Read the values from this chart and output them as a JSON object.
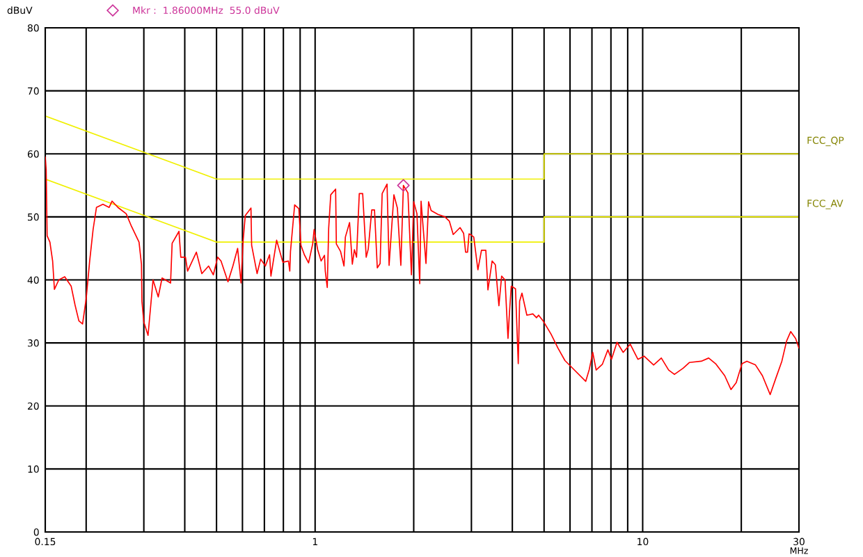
{
  "chart_data": {
    "type": "line",
    "ylabel": "dBuV",
    "xlabel": "MHz",
    "log": "x",
    "grid": true,
    "legend": false,
    "marker": "none",
    "line_style": "solid",
    "xlim": [
      0.15,
      30
    ],
    "ylim": [
      0,
      80
    ],
    "xticks": [
      0.15,
      {
        "value": 0.2,
        "label": null
      },
      {
        "value": 0.3,
        "label": null
      },
      {
        "value": 0.4,
        "label": null
      },
      {
        "value": 0.5,
        "label": null
      },
      {
        "value": 0.6,
        "label": null
      },
      {
        "value": 0.7,
        "label": null
      },
      {
        "value": 0.8,
        "label": null
      },
      {
        "value": 0.9,
        "label": null
      },
      1,
      {
        "value": 2,
        "label": null
      },
      {
        "value": 3,
        "label": null
      },
      {
        "value": 4,
        "label": null
      },
      {
        "value": 5,
        "label": null
      },
      {
        "value": 6,
        "label": null
      },
      {
        "value": 7,
        "label": null
      },
      {
        "value": 8,
        "label": null
      },
      {
        "value": 9,
        "label": null
      },
      10,
      {
        "value": 20,
        "label": null
      },
      30
    ],
    "yticks": [
      0,
      10,
      20,
      30,
      40,
      50,
      60,
      70,
      80
    ],
    "annotations": [
      "Mkr :  1.86000MHz  55.0 dBuV"
    ],
    "series": [
      {
        "color": "#ff0000",
        "x": [
          0.15,
          0.151,
          0.152,
          0.155,
          0.158,
          0.16,
          0.165,
          0.172,
          0.18,
          0.185,
          0.19,
          0.195,
          0.2,
          0.205,
          0.21,
          0.215,
          0.225,
          0.235,
          0.24,
          0.25,
          0.265,
          0.275,
          0.29,
          0.295,
          0.296,
          0.3,
          0.309,
          0.32,
          0.332,
          0.341,
          0.362,
          0.366,
          0.384,
          0.389,
          0.402,
          0.408,
          0.434,
          0.451,
          0.473,
          0.489,
          0.504,
          0.516,
          0.542,
          0.561,
          0.58,
          0.594,
          0.603,
          0.612,
          0.637,
          0.64,
          0.665,
          0.682,
          0.705,
          0.726,
          0.733,
          0.763,
          0.797,
          0.829,
          0.837,
          0.841,
          0.866,
          0.892,
          0.905,
          0.927,
          0.955,
          0.983,
          0.993,
          1.018,
          1.043,
          1.068,
          1.074,
          1.089,
          1.1,
          1.116,
          1.155,
          1.161,
          1.196,
          1.225,
          1.237,
          1.274,
          1.299,
          1.318,
          1.338,
          1.364,
          1.397,
          1.432,
          1.453,
          1.489,
          1.518,
          1.548,
          1.579,
          1.602,
          1.658,
          1.682,
          1.74,
          1.783,
          1.827,
          1.86,
          1.92,
          1.968,
          2.0,
          2.046,
          2.086,
          2.106,
          2.18,
          2.22,
          2.26,
          2.37,
          2.49,
          2.57,
          2.64,
          2.77,
          2.84,
          2.88,
          2.92,
          2.95,
          2.98,
          3.05,
          3.14,
          3.22,
          3.32,
          3.37,
          3.47,
          3.55,
          3.64,
          3.71,
          3.8,
          3.88,
          3.92,
          3.97,
          4.09,
          4.17,
          4.21,
          4.28,
          4.43,
          4.62,
          4.74,
          4.81,
          4.98,
          5.25,
          5.51,
          5.79,
          6.08,
          6.7,
          6.87,
          7.04,
          7.21,
          7.53,
          7.83,
          8.03,
          8.35,
          8.72,
          9.16,
          9.67,
          10.1,
          10.8,
          11.4,
          12.0,
          12.5,
          13.3,
          13.9,
          15.1,
          15.9,
          16.7,
          17.8,
          18.6,
          19.3,
          20.1,
          20.8,
          22.1,
          23.2,
          24.5,
          25.5,
          26.6,
          27.5,
          28.3,
          29.3,
          30
        ],
        "values": [
          59.5,
          57.5,
          47,
          46,
          43,
          38.5,
          40,
          40.5,
          39,
          36,
          33.5,
          33,
          37,
          43,
          48,
          51.5,
          52,
          51.5,
          52.5,
          51.5,
          50.5,
          48.5,
          46,
          42.5,
          36.6,
          33.3,
          31.2,
          40,
          37.3,
          40.3,
          39.5,
          45.8,
          47.7,
          43.6,
          43.6,
          41.4,
          44.4,
          41,
          42.2,
          40.8,
          43.6,
          43,
          39.7,
          42.2,
          45,
          39.5,
          46.3,
          50.2,
          51.4,
          45.5,
          41,
          43.3,
          42.2,
          44,
          40.6,
          46.3,
          42.8,
          43,
          41.4,
          44.5,
          51.9,
          51.3,
          45.5,
          44,
          42.7,
          45.7,
          48,
          44.8,
          43,
          43.9,
          41.4,
          38.8,
          48.2,
          53.5,
          54.4,
          45.7,
          44.5,
          42.2,
          46.8,
          49.1,
          42.5,
          44.8,
          43.6,
          53.7,
          53.7,
          43.6,
          44.9,
          51.1,
          51.1,
          41.9,
          42.6,
          53.7,
          55.2,
          42.3,
          53.5,
          51.4,
          42.3,
          55.0,
          53.8,
          40.8,
          52.4,
          50.5,
          39.4,
          52.5,
          42.6,
          52.4,
          51,
          50.4,
          50,
          49.3,
          47.2,
          48.3,
          47.4,
          44.4,
          44.4,
          47.3,
          47.2,
          46.8,
          41.6,
          44.7,
          44.7,
          38.4,
          43,
          42.4,
          35.9,
          40.6,
          40,
          30.7,
          34.8,
          39,
          38.6,
          26.7,
          36.6,
          37.9,
          34.4,
          34.6,
          34,
          34.4,
          33.4,
          31.4,
          29.2,
          27.2,
          26.1,
          23.9,
          25.8,
          28.5,
          25.7,
          26.6,
          28.9,
          27.4,
          30.1,
          28.5,
          29.8,
          27.4,
          27.9,
          26.5,
          27.6,
          25.7,
          25,
          26,
          26.9,
          27.1,
          27.6,
          26.7,
          24.8,
          22.6,
          23.7,
          26.7,
          27.1,
          26.5,
          24.8,
          21.8,
          24.4,
          27.1,
          30.3,
          31.8,
          30.7,
          29.2
        ]
      },
      {
        "name": "FCC_QP",
        "color": "#f0f000",
        "x": [
          0.15,
          0.5,
          5,
          5,
          30
        ],
        "values": [
          66,
          56,
          56,
          60,
          60
        ]
      },
      {
        "name": "FCC_AV",
        "color": "#f0f000",
        "x": [
          0.15,
          0.5,
          5,
          5,
          30
        ],
        "values": [
          56,
          46,
          46,
          50,
          50
        ]
      },
      {
        "type": "scatter",
        "marker": "diamond",
        "color": "#cc3399",
        "x": [
          1.86
        ],
        "values": [
          55.0
        ]
      }
    ]
  }
}
